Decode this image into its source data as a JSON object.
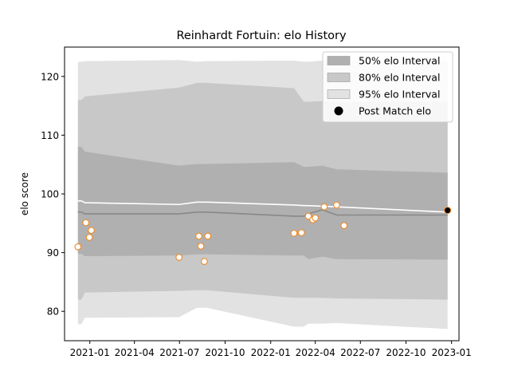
{
  "chart_data": {
    "type": "line",
    "title": "Reinhardt Fortuin: elo History",
    "xlabel": "",
    "ylabel": "elo score",
    "ylim": [
      75,
      125
    ],
    "xlim": [
      "2020-11-11",
      "2023-01-16"
    ],
    "y_ticks": [
      80,
      90,
      100,
      110,
      120
    ],
    "x_ticks": [
      "2021-01",
      "2021-04",
      "2021-07",
      "2021-10",
      "2022-01",
      "2022-04",
      "2022-07",
      "2022-10",
      "2023-01"
    ],
    "legend_position": "top-right",
    "colors": {
      "band_50": "#b0b0b0",
      "band_80": "#c8c8c8",
      "band_95": "#e2e2e2",
      "median_line": "#888888",
      "mean_line": "#ffffff",
      "point_edge": "#f08a24",
      "point_fill": "#ffffff",
      "post_match": "#000000",
      "post_match_edge": "#f08a24"
    },
    "legend": [
      {
        "key": "band_50",
        "label": "50% elo Interval",
        "kind": "patch"
      },
      {
        "key": "band_80",
        "label": "80% elo Interval",
        "kind": "patch"
      },
      {
        "key": "band_95",
        "label": "95% elo Interval",
        "kind": "patch"
      },
      {
        "key": "post_match",
        "label": "Post Match elo",
        "kind": "marker"
      }
    ],
    "bands": {
      "dates": [
        "2020-12-08",
        "2020-12-15",
        "2020-12-22",
        "2021-06-30",
        "2021-08-05",
        "2021-08-25",
        "2022-02-17",
        "2022-03-09",
        "2022-03-18",
        "2022-04-15",
        "2022-05-14",
        "2022-12-24"
      ],
      "band_95_upper": [
        122.5,
        122.5,
        122.6,
        122.8,
        122.5,
        122.6,
        122.7,
        122.5,
        122.5,
        122.7,
        122.6,
        122.7
      ],
      "band_95_lower": [
        77.8,
        77.8,
        78.9,
        79.0,
        80.6,
        80.6,
        77.4,
        77.4,
        77.9,
        77.9,
        78.0,
        77.0
      ],
      "band_80_upper": [
        116.0,
        116.0,
        116.6,
        118.1,
        118.9,
        118.9,
        118.0,
        115.7,
        115.7,
        115.8,
        115.7,
        115.7
      ],
      "band_80_lower": [
        82.0,
        82.0,
        83.2,
        83.5,
        83.6,
        83.6,
        82.3,
        82.3,
        82.3,
        82.3,
        82.2,
        82.0
      ],
      "band_50_upper": [
        108.0,
        108.0,
        107.2,
        104.8,
        105.1,
        105.1,
        105.4,
        104.6,
        104.6,
        104.8,
        104.2,
        103.6
      ],
      "band_50_lower": [
        89.8,
        89.8,
        89.4,
        89.5,
        89.7,
        89.7,
        89.5,
        89.5,
        88.9,
        89.3,
        88.9,
        88.8
      ],
      "median": [
        96.9,
        96.9,
        96.6,
        96.6,
        96.9,
        96.9,
        96.2,
        96.2,
        96.6,
        97.3,
        96.4,
        96.4
      ],
      "mean": [
        98.8,
        98.8,
        98.5,
        98.2,
        98.6,
        98.6,
        98.1,
        98.0,
        98.0,
        97.9,
        97.8,
        96.9
      ]
    },
    "match_points": [
      {
        "date": "2020-12-08",
        "elo": 91.0
      },
      {
        "date": "2020-12-24",
        "elo": 95.1
      },
      {
        "date": "2020-12-31",
        "elo": 92.6
      },
      {
        "date": "2021-01-04",
        "elo": 93.8
      },
      {
        "date": "2021-06-30",
        "elo": 89.2
      },
      {
        "date": "2021-08-09",
        "elo": 92.8
      },
      {
        "date": "2021-08-13",
        "elo": 91.1
      },
      {
        "date": "2021-08-20",
        "elo": 88.5
      },
      {
        "date": "2021-08-27",
        "elo": 92.8
      },
      {
        "date": "2022-02-17",
        "elo": 93.3
      },
      {
        "date": "2022-03-04",
        "elo": 93.4
      },
      {
        "date": "2022-03-18",
        "elo": 96.2
      },
      {
        "date": "2022-03-27",
        "elo": 95.6
      },
      {
        "date": "2022-04-01",
        "elo": 95.9
      },
      {
        "date": "2022-04-19",
        "elo": 97.8
      },
      {
        "date": "2022-05-14",
        "elo": 98.1
      },
      {
        "date": "2022-05-29",
        "elo": 94.6
      }
    ],
    "post_match_point": {
      "date": "2022-12-24",
      "elo": 97.2
    }
  }
}
